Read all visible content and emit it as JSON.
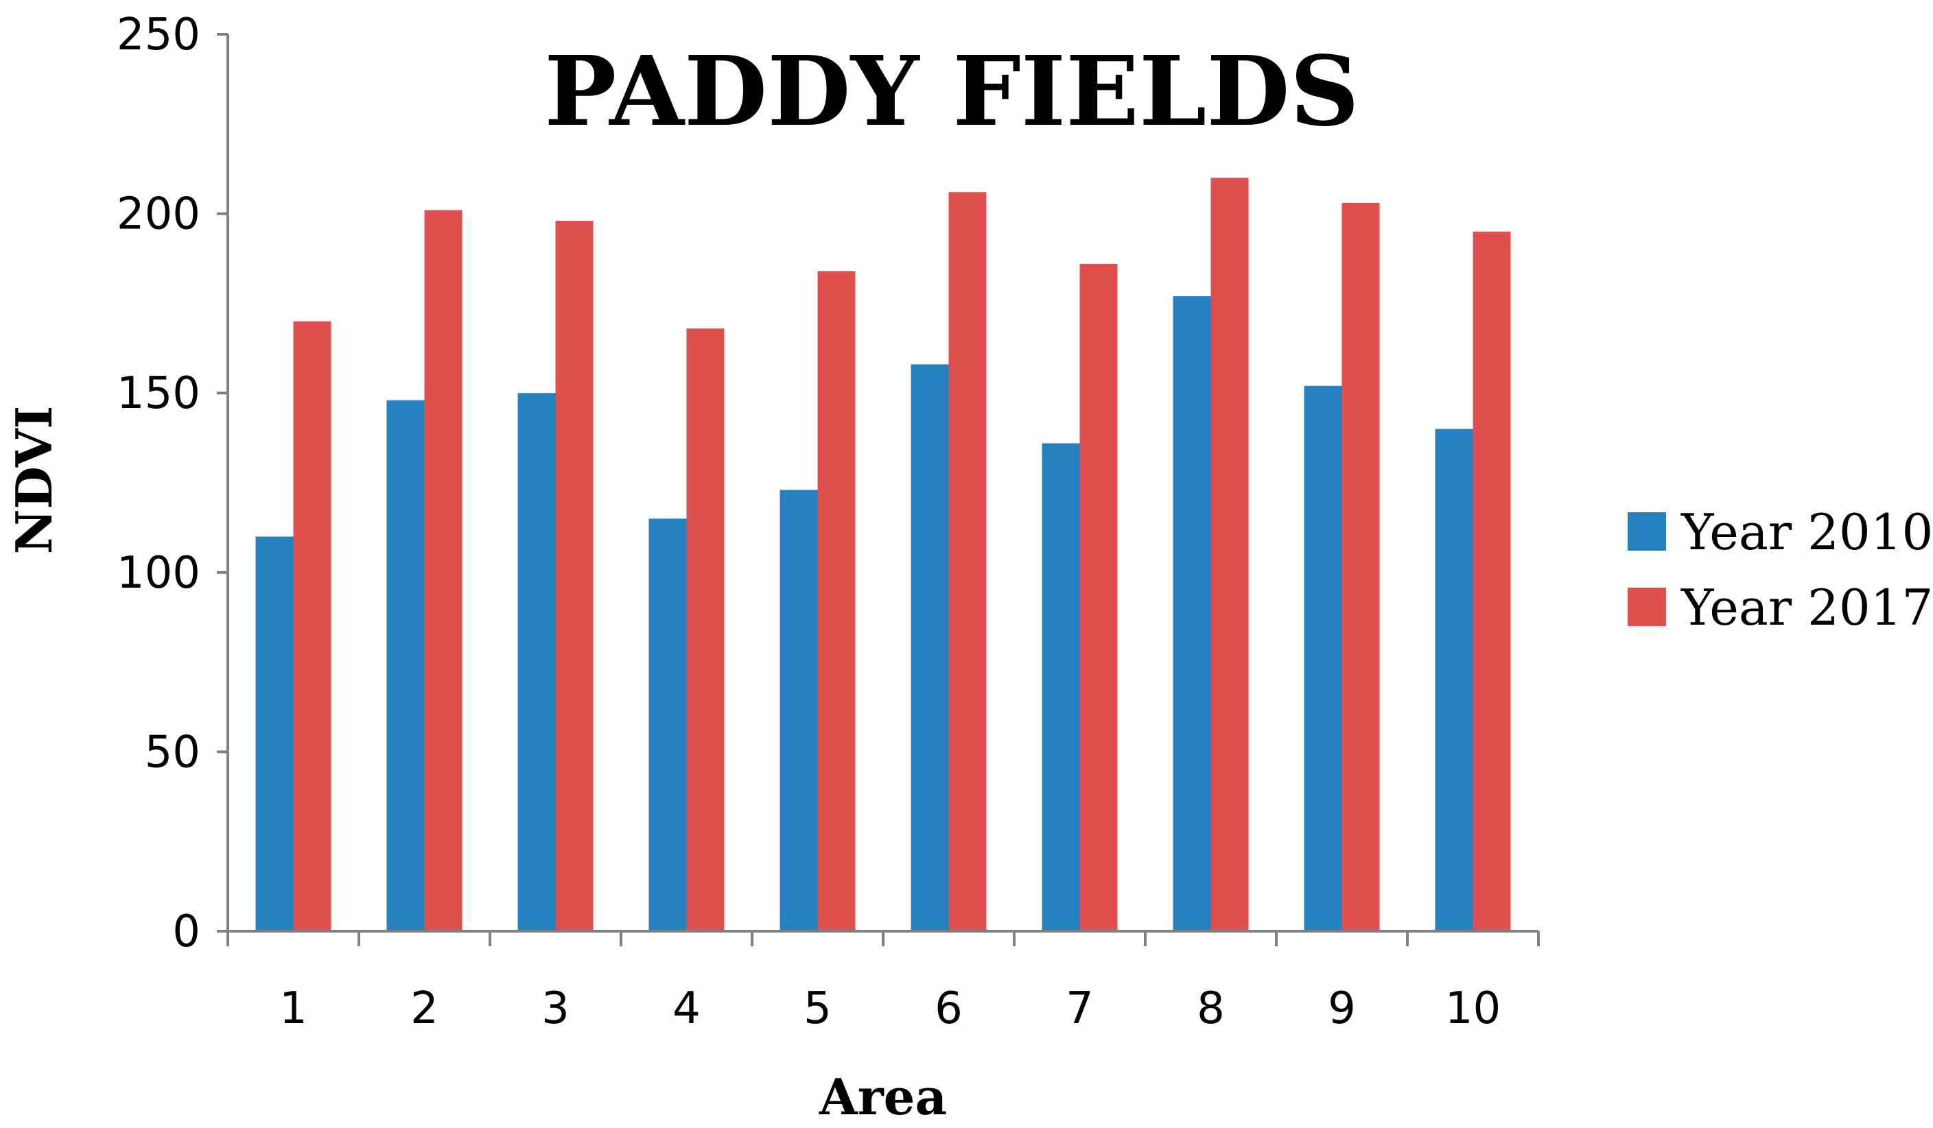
{
  "chart_data": {
    "type": "bar",
    "title": "PADDY FIELDS",
    "xlabel": "Area",
    "ylabel": "NDVI",
    "categories": [
      "1",
      "2",
      "3",
      "4",
      "5",
      "6",
      "7",
      "8",
      "9",
      "10"
    ],
    "series": [
      {
        "name": "Year 2010",
        "color": "#2681C0",
        "values": [
          110,
          148,
          150,
          115,
          123,
          158,
          136,
          177,
          152,
          140
        ]
      },
      {
        "name": "Year 2017",
        "color": "#DE4F4E",
        "values": [
          170,
          201,
          198,
          168,
          184,
          206,
          186,
          210,
          203,
          195
        ]
      }
    ],
    "ylim": [
      0,
      250
    ],
    "yticks": [
      "0",
      "50",
      "100",
      "150",
      "200",
      "250"
    ],
    "grid": false,
    "legend_position": "right"
  }
}
